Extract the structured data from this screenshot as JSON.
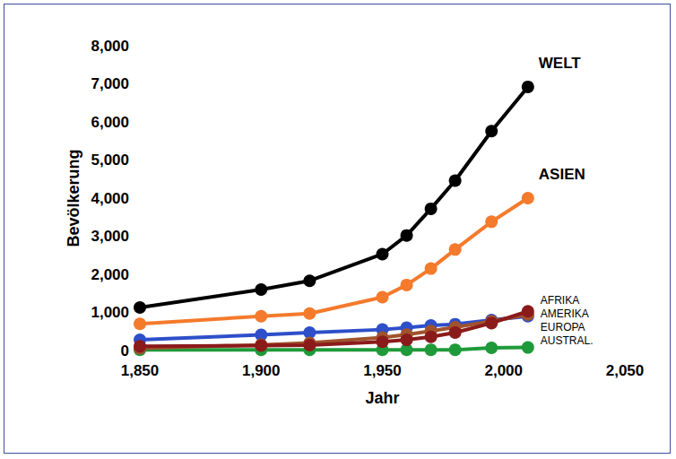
{
  "chart_data": {
    "type": "line",
    "x_label": "Jahr",
    "y_label": "Bevölkerung",
    "x": [
      1850,
      1900,
      1920,
      1950,
      1960,
      1970,
      1980,
      1995,
      2010
    ],
    "series": [
      {
        "name": "WELT",
        "color": "#000000",
        "values": [
          1130,
          1600,
          1830,
          2530,
          3020,
          3720,
          4460,
          5760,
          6920
        ]
      },
      {
        "name": "ASIEN",
        "color": "#f47a2c",
        "values": [
          700,
          900,
          970,
          1400,
          1720,
          2150,
          2650,
          3380,
          4000
        ]
      },
      {
        "name": "AFRIKA",
        "color": "#8b1a1a",
        "values": [
          110,
          130,
          140,
          230,
          280,
          360,
          470,
          720,
          1030
        ]
      },
      {
        "name": "AMERIKA",
        "color": "#a0522d",
        "values": [
          60,
          150,
          200,
          340,
          420,
          510,
          610,
          770,
          940
        ]
      },
      {
        "name": "EUROPA",
        "color": "#2e4fc9",
        "values": [
          280,
          410,
          470,
          550,
          600,
          660,
          690,
          800,
          900
        ]
      },
      {
        "name": "AUSTRAL.",
        "color": "#1f9a3a",
        "values": [
          20,
          20,
          20,
          20,
          20,
          20,
          20,
          70,
          80
        ]
      }
    ],
    "xlim": [
      1850,
      2050
    ],
    "xticks": [
      1850,
      1900,
      1950,
      2000,
      2050
    ],
    "ylim": [
      0,
      8000
    ],
    "yticks": [
      0,
      1000,
      2000,
      3000,
      4000,
      5000,
      6000,
      7000,
      8000
    ],
    "grid": false,
    "marker": "circle"
  }
}
